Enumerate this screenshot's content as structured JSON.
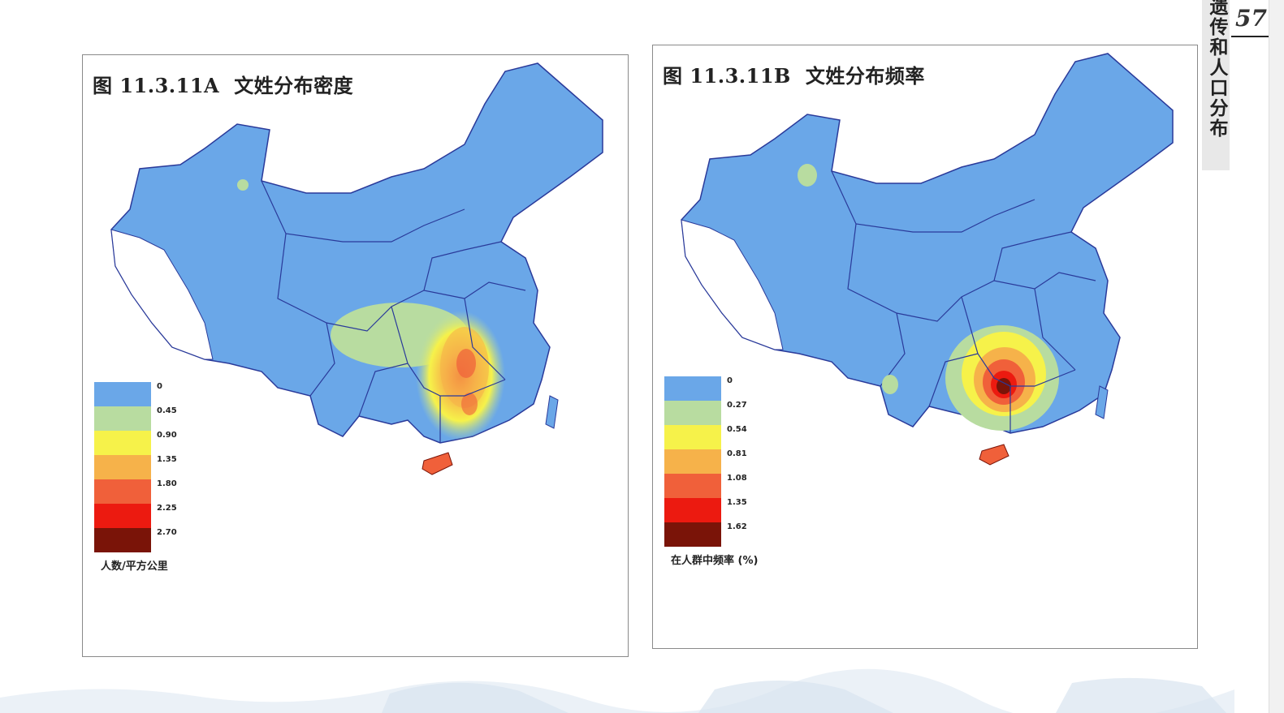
{
  "page": {
    "page_number": "57",
    "side_header": "遗传和人口分布"
  },
  "panel_a": {
    "figure_number": "图 11.3.11A",
    "title": "文姓分布密度",
    "legend": {
      "ticks": [
        "0",
        "0.45",
        "0.90",
        "1.35",
        "1.80",
        "2.25",
        "2.70"
      ],
      "colors": [
        "#6aa7e8",
        "#b8dca0",
        "#f6f24a",
        "#f6b24a",
        "#f0603a",
        "#ec1a10",
        "#7a1408"
      ],
      "unit": "人数/平方公里"
    }
  },
  "panel_b": {
    "figure_number": "图 11.3.11B",
    "title": "文姓分布频率",
    "legend": {
      "ticks": [
        "0",
        "0.27",
        "0.54",
        "0.81",
        "1.08",
        "1.35",
        "1.62"
      ],
      "colors": [
        "#6aa7e8",
        "#b8dca0",
        "#f6f24a",
        "#f6b24a",
        "#f0603a",
        "#ec1a10",
        "#7a1408"
      ],
      "unit": "在人群中频率 (%)"
    }
  }
}
